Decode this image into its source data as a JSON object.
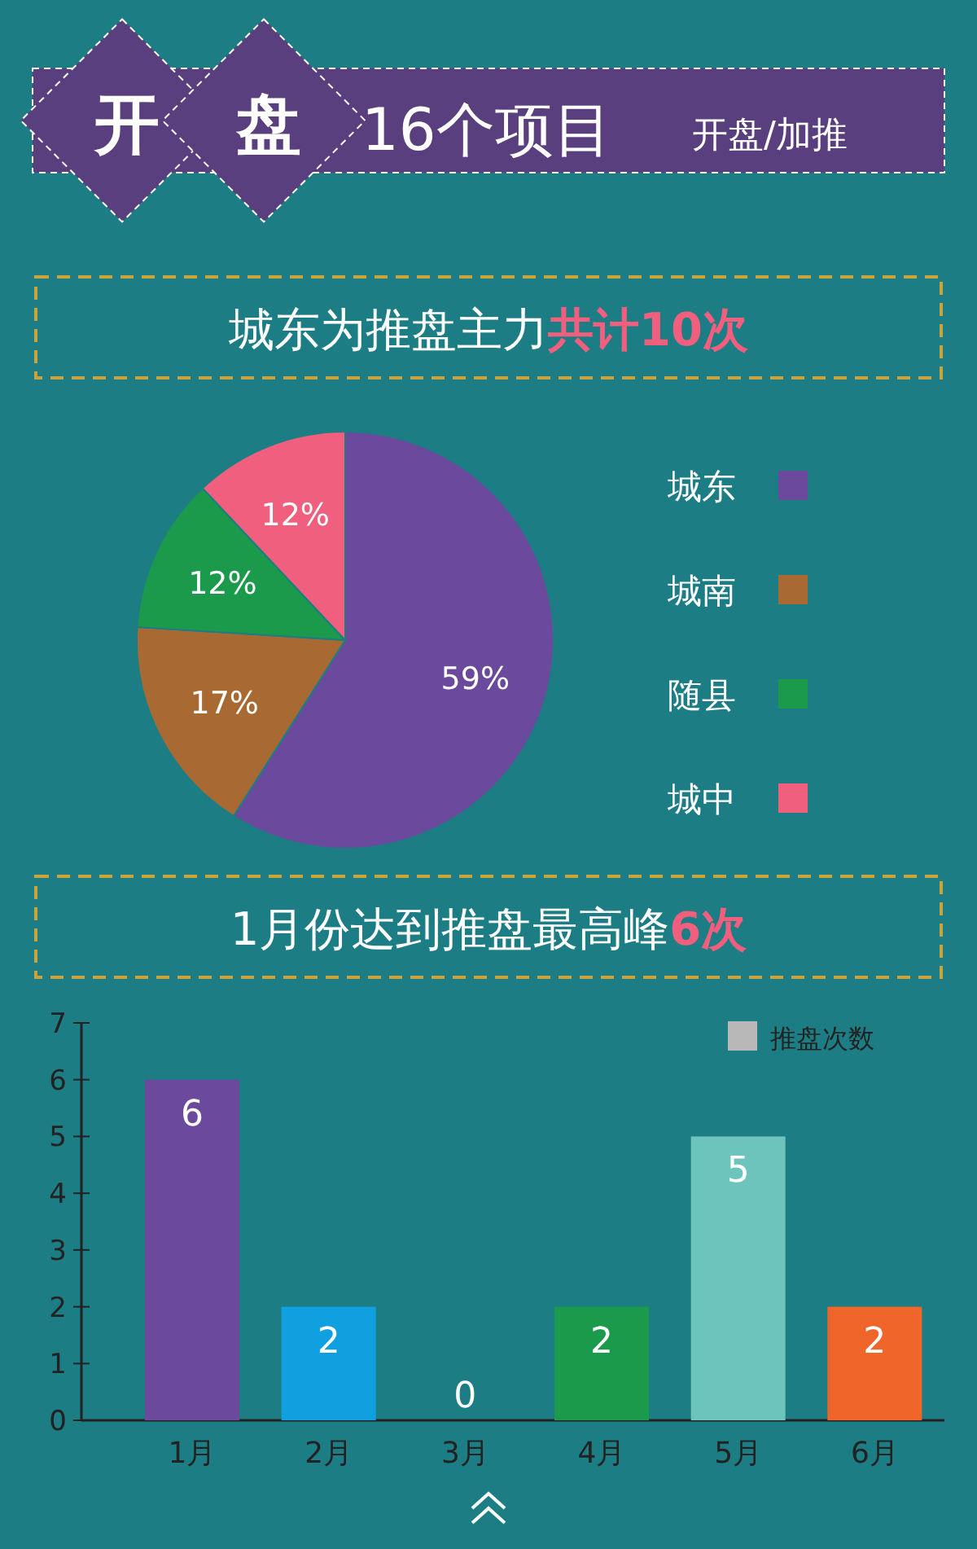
{
  "chart_data": [
    {
      "type": "other",
      "annotations": [
        "开",
        "盘",
        "16个项目",
        "开盘/加推"
      ]
    },
    {
      "type": "pie",
      "title": "城东为推盘主力",
      "annotations": [
        "共计10次"
      ],
      "categories": [
        "城东",
        "城南",
        "随县",
        "城中"
      ],
      "values": [
        59,
        17,
        12,
        12
      ],
      "colors": [
        "#6b4a9e",
        "#a86a32",
        "#1a9a4a",
        "#f0607e"
      ],
      "value_labels": [
        "59%",
        "17%",
        "12%",
        "12%"
      ],
      "legend": "right"
    },
    {
      "type": "bar",
      "title": "1月份达到推盘最高峰",
      "annotations": [
        "6次"
      ],
      "categories": [
        "1月",
        "2月",
        "3月",
        "4月",
        "5月",
        "6月"
      ],
      "series": [
        {
          "name": "推盘次数",
          "color": "#b8b8b8",
          "colors": [
            "#6b4a9e",
            "#10a0e0",
            "#7a7a7a",
            "#1a9a4a",
            "#6cc4bc",
            "#f0662a"
          ],
          "values": [
            6,
            2,
            0,
            2,
            5,
            2
          ]
        }
      ],
      "ylim": [
        0,
        7
      ],
      "yticks": [
        0,
        1,
        2,
        3,
        4,
        5,
        6,
        7
      ],
      "data_labels": true,
      "legend": "top right",
      "grid": false
    }
  ]
}
